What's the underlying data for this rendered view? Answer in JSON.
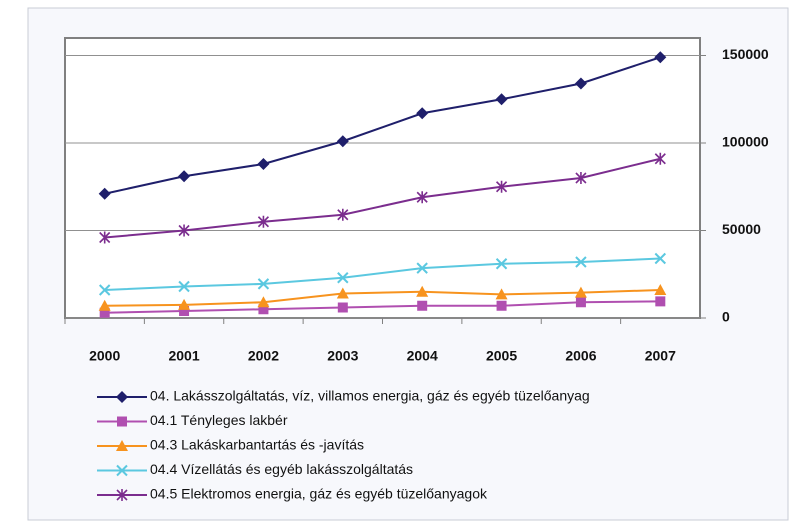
{
  "chart_data": {
    "type": "line",
    "categories": [
      "2000",
      "2001",
      "2002",
      "2003",
      "2004",
      "2005",
      "2006",
      "2007"
    ],
    "series": [
      {
        "name": "04. Lakásszolgáltatás, víz, villamos energia, gáz és egyéb tüzelőanyag",
        "color": "#1f1f6b",
        "marker": "diamond",
        "values": [
          71000,
          81000,
          88000,
          101000,
          117000,
          125000,
          134000,
          149000
        ]
      },
      {
        "name": "04.1 Tényleges lakbér",
        "color": "#b04fb0",
        "marker": "square",
        "values": [
          3000,
          4000,
          5000,
          6000,
          7000,
          7000,
          9000,
          9500
        ]
      },
      {
        "name": "04.3 Lakáskarbantartás és -javítás",
        "color": "#f7931e",
        "marker": "triangle",
        "values": [
          7000,
          7500,
          9000,
          14000,
          15000,
          13500,
          14500,
          16000
        ]
      },
      {
        "name": "04.4 Vízellátás és egyéb lakásszolgáltatás",
        "color": "#5bc8e0",
        "marker": "x",
        "values": [
          16000,
          18000,
          19500,
          23000,
          28500,
          31000,
          32000,
          34000
        ]
      },
      {
        "name": "04.5  Elektromos energia, gáz és egyéb tüzelőanyagok",
        "color": "#7b2d8e",
        "marker": "star",
        "values": [
          46000,
          50000,
          55000,
          59000,
          69000,
          75000,
          80000,
          91000
        ]
      }
    ],
    "ylim": [
      0,
      160000
    ],
    "yticks": [
      0,
      50000,
      100000,
      150000
    ],
    "y_axis_side": "right",
    "grid": true
  }
}
